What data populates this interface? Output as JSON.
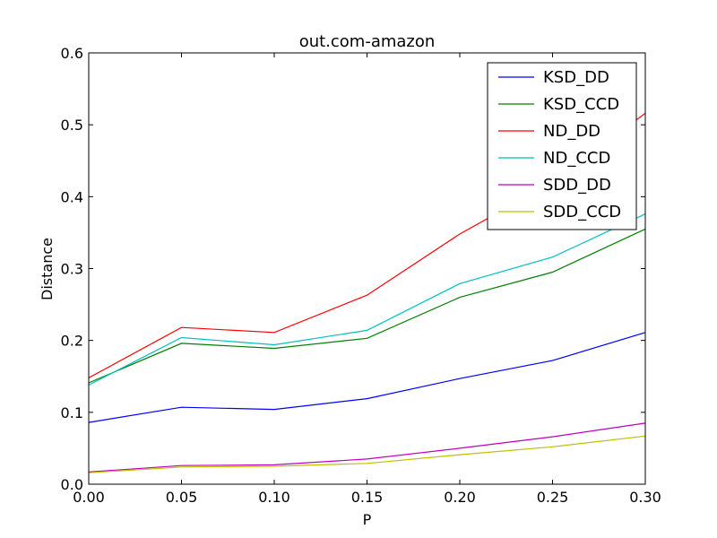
{
  "chart_data": {
    "type": "line",
    "title": "out.com-amazon",
    "xlabel": "P",
    "ylabel": "Distance",
    "xlim": [
      0.0,
      0.3
    ],
    "ylim": [
      0.0,
      0.6
    ],
    "x_ticks": [
      "0.00",
      "0.05",
      "0.10",
      "0.15",
      "0.20",
      "0.25",
      "0.30"
    ],
    "y_ticks": [
      "0.0",
      "0.1",
      "0.2",
      "0.3",
      "0.4",
      "0.5",
      "0.6"
    ],
    "grid": false,
    "legend_position": "top-right",
    "x": [
      0.0,
      0.05,
      0.1,
      0.15,
      0.2,
      0.25,
      0.3
    ],
    "series": [
      {
        "name": "KSD_DD",
        "color": "#0000ff",
        "values": [
          0.086,
          0.107,
          0.104,
          0.119,
          0.147,
          0.172,
          0.211
        ]
      },
      {
        "name": "KSD_CCD",
        "color": "#008000",
        "values": [
          0.141,
          0.196,
          0.189,
          0.203,
          0.26,
          0.295,
          0.355
        ]
      },
      {
        "name": "ND_DD",
        "color": "#ff0000",
        "values": [
          0.148,
          0.218,
          0.211,
          0.263,
          0.348,
          0.42,
          0.516
        ]
      },
      {
        "name": "ND_CCD",
        "color": "#00bfbf",
        "values": [
          0.138,
          0.204,
          0.194,
          0.214,
          0.279,
          0.316,
          0.376
        ]
      },
      {
        "name": "SDD_DD",
        "color": "#bf00bf",
        "values": [
          0.017,
          0.026,
          0.027,
          0.035,
          0.05,
          0.066,
          0.085
        ]
      },
      {
        "name": "SDD_CCD",
        "color": "#bfbf00",
        "values": [
          0.016,
          0.024,
          0.025,
          0.029,
          0.041,
          0.052,
          0.067
        ]
      }
    ]
  }
}
